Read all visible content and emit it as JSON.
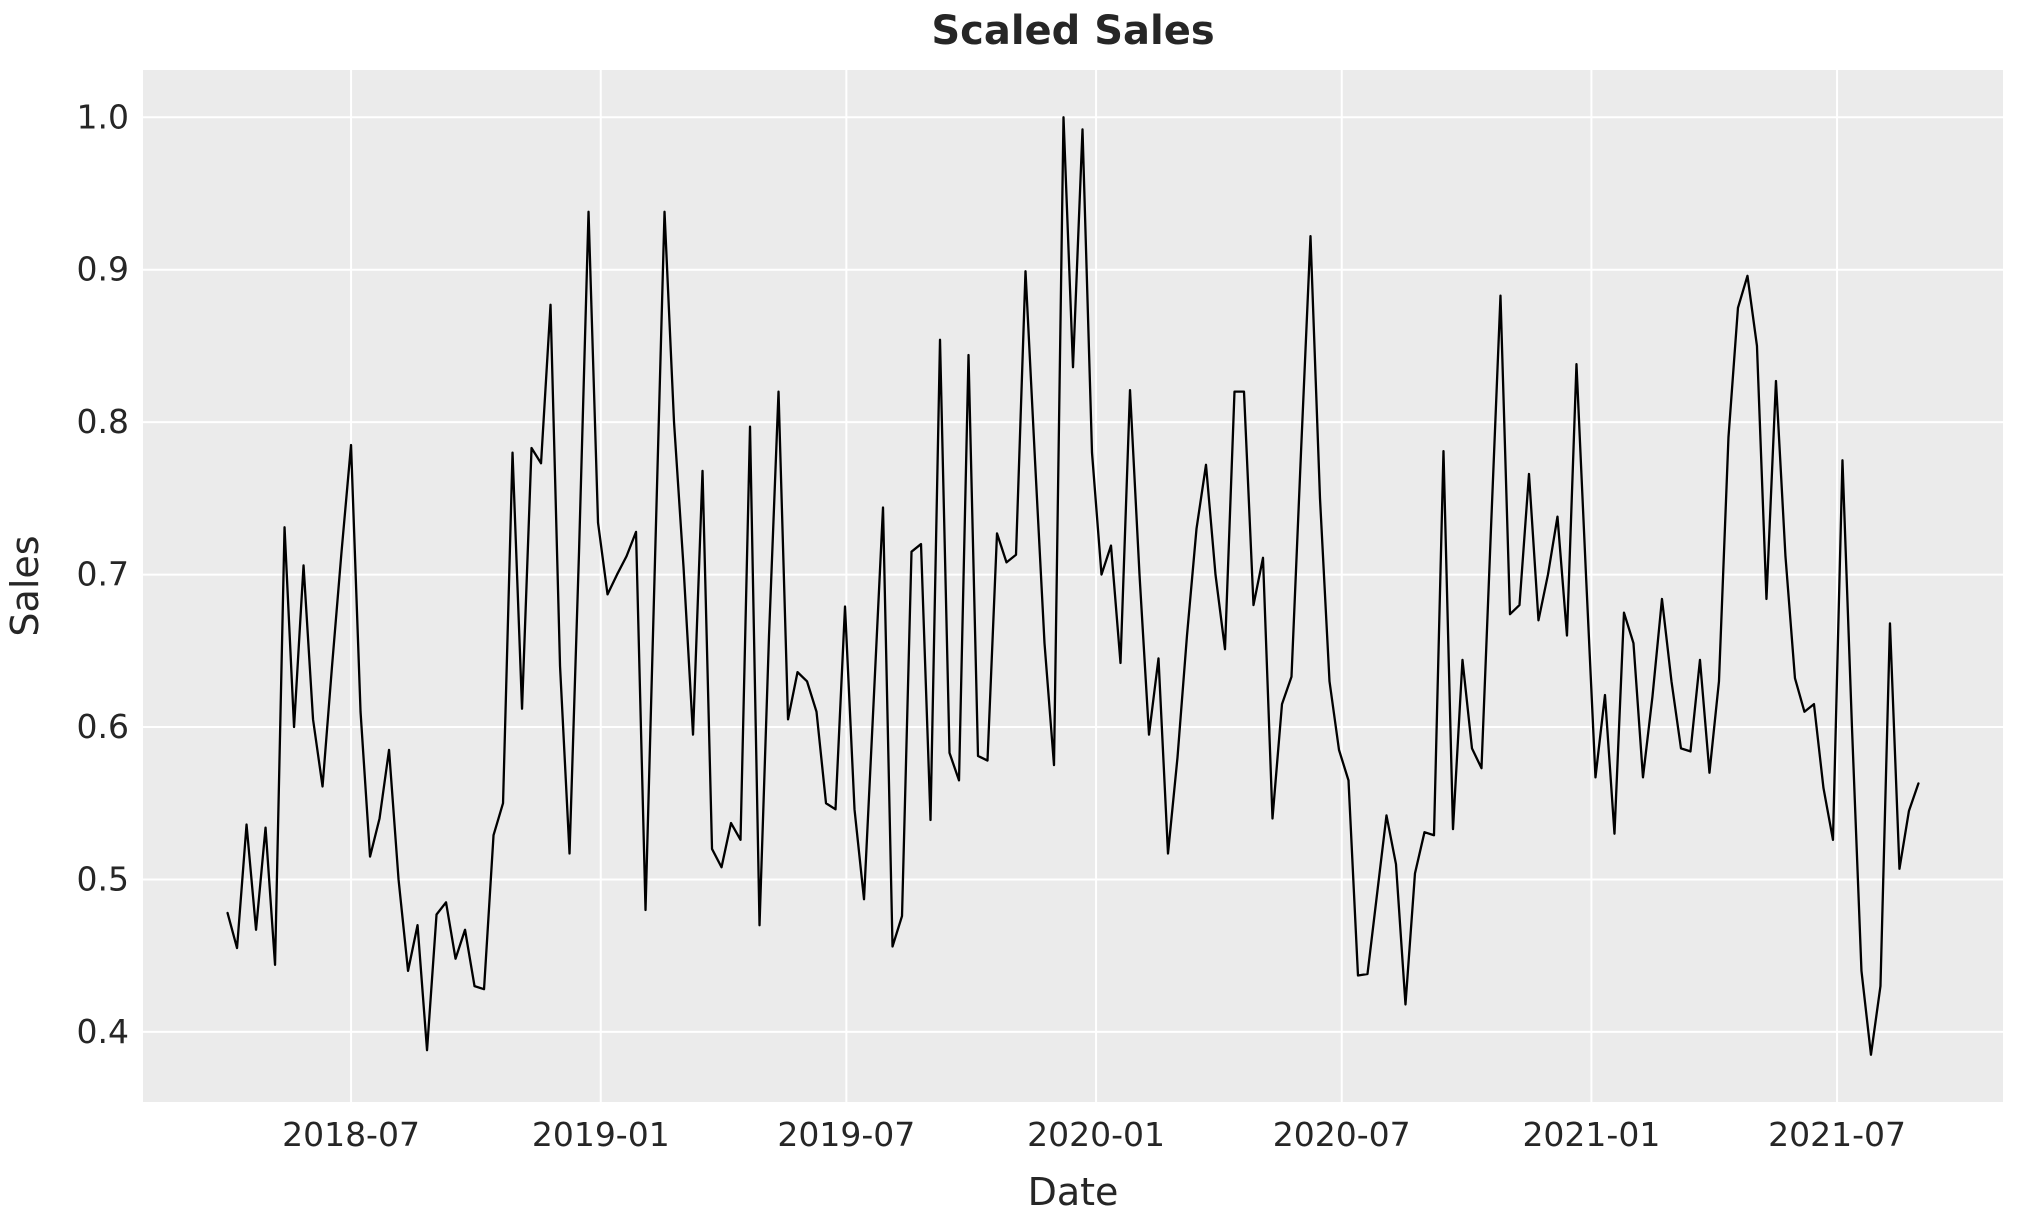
{
  "title": "Scaled Sales",
  "chart_data": {
    "type": "line",
    "title": "Scaled Sales",
    "xlabel": "Date",
    "ylabel": "Sales",
    "series_name": "Scaled Sales",
    "frequency": "weekly",
    "start_date": "2018-04-01",
    "end_date": "2021-08-29",
    "x_tick_labels": [
      "2018-07",
      "2019-01",
      "2019-07",
      "2020-01",
      "2020-07",
      "2021-01",
      "2021-07"
    ],
    "x_tick_week_offsets": [
      13.0,
      39.29,
      65.14,
      91.43,
      117.29,
      143.57,
      169.43
    ],
    "y_tick_labels": [
      "0.4",
      "0.5",
      "0.6",
      "0.7",
      "0.8",
      "0.9",
      "1.0"
    ],
    "y_tick_values": [
      0.4,
      0.5,
      0.6,
      0.7,
      0.8,
      0.9,
      1.0
    ],
    "ylim": [
      0.354,
      1.031
    ],
    "x_margin_weeks": 8.9,
    "grid": true,
    "legend": "none",
    "values": [
      0.478,
      0.455,
      0.536,
      0.467,
      0.534,
      0.444,
      0.731,
      0.6,
      0.706,
      0.605,
      0.561,
      0.64,
      0.715,
      0.785,
      0.61,
      0.515,
      0.54,
      0.585,
      0.5,
      0.44,
      0.47,
      0.388,
      0.477,
      0.485,
      0.448,
      0.467,
      0.43,
      0.428,
      0.529,
      0.55,
      0.78,
      0.612,
      0.783,
      0.773,
      0.877,
      0.64,
      0.517,
      0.715,
      0.938,
      0.734,
      0.687,
      0.7,
      0.712,
      0.728,
      0.48,
      0.71,
      0.938,
      0.8,
      0.705,
      0.595,
      0.768,
      0.52,
      0.508,
      0.537,
      0.526,
      0.797,
      0.47,
      0.66,
      0.82,
      0.605,
      0.636,
      0.63,
      0.61,
      0.55,
      0.546,
      0.679,
      0.546,
      0.487,
      0.615,
      0.744,
      0.456,
      0.476,
      0.715,
      0.72,
      0.539,
      0.854,
      0.583,
      0.565,
      0.844,
      0.581,
      0.578,
      0.727,
      0.708,
      0.713,
      0.899,
      0.775,
      0.655,
      0.575,
      1.0,
      0.836,
      0.992,
      0.78,
      0.7,
      0.719,
      0.642,
      0.821,
      0.7,
      0.595,
      0.645,
      0.517,
      0.58,
      0.66,
      0.73,
      0.772,
      0.7,
      0.651,
      0.82,
      0.82,
      0.68,
      0.711,
      0.54,
      0.615,
      0.633,
      0.78,
      0.922,
      0.75,
      0.63,
      0.585,
      0.565,
      0.437,
      0.438,
      0.49,
      0.542,
      0.51,
      0.418,
      0.504,
      0.531,
      0.529,
      0.781,
      0.533,
      0.644,
      0.586,
      0.573,
      0.73,
      0.883,
      0.674,
      0.68,
      0.766,
      0.67,
      0.7,
      0.738,
      0.66,
      0.838,
      0.7,
      0.567,
      0.621,
      0.53,
      0.675,
      0.655,
      0.567,
      0.62,
      0.684,
      0.63,
      0.586,
      0.584,
      0.644,
      0.57,
      0.63,
      0.79,
      0.875,
      0.896,
      0.85,
      0.684,
      0.827,
      0.712,
      0.632,
      0.61,
      0.615,
      0.56,
      0.526,
      0.775,
      0.6,
      0.44,
      0.385,
      0.43,
      0.668,
      0.507,
      0.545,
      0.563
    ],
    "colors": {
      "line": "#000000",
      "plot_background": "#ebebeb",
      "figure_background": "#ffffff",
      "grid": "#ffffff",
      "text": "#262626"
    }
  }
}
